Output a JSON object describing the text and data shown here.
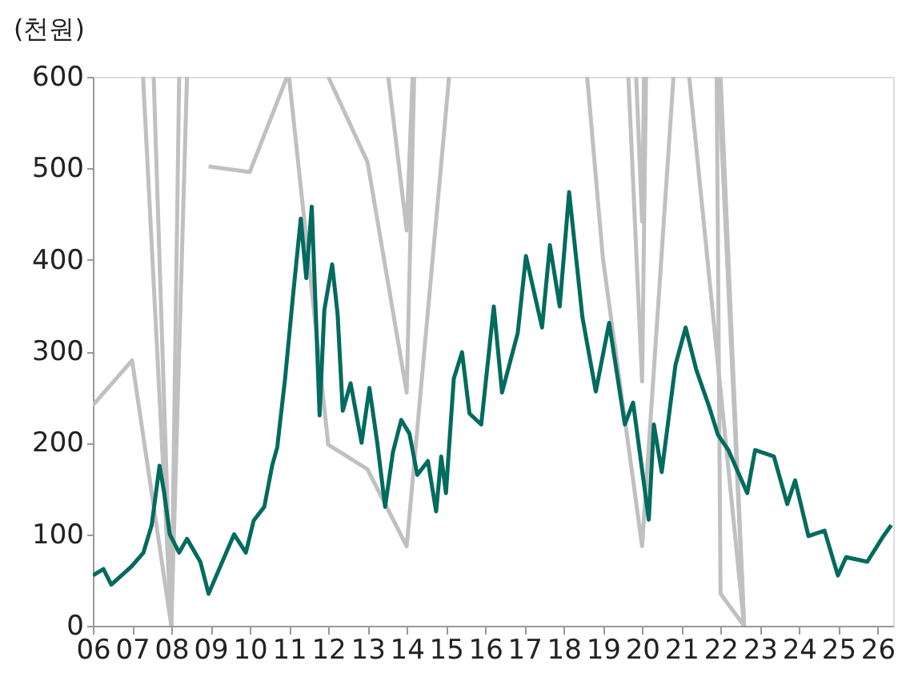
{
  "chart_data": {
    "type": "line",
    "ylabel": "(천원)",
    "xlim": [
      2006,
      2026.4
    ],
    "ylim": [
      0,
      600
    ],
    "yticks": [
      0,
      100,
      200,
      300,
      400,
      500,
      600
    ],
    "xticks": [
      {
        "value": 2006,
        "label": "06"
      },
      {
        "value": 2007,
        "label": "07"
      },
      {
        "value": 2008,
        "label": "08"
      },
      {
        "value": 2009,
        "label": "09"
      },
      {
        "value": 2010,
        "label": "10"
      },
      {
        "value": 2011,
        "label": "11"
      },
      {
        "value": 2012,
        "label": "12"
      },
      {
        "value": 2013,
        "label": "13"
      },
      {
        "value": 2014,
        "label": "14"
      },
      {
        "value": 2015,
        "label": "15"
      },
      {
        "value": 2016,
        "label": "16"
      },
      {
        "value": 2017,
        "label": "17"
      },
      {
        "value": 2018,
        "label": "18"
      },
      {
        "value": 2019,
        "label": "19"
      },
      {
        "value": 2020,
        "label": "20"
      },
      {
        "value": 2021,
        "label": "21"
      },
      {
        "value": 2022,
        "label": "22"
      },
      {
        "value": 2023,
        "label": "23"
      },
      {
        "value": 2024,
        "label": "24"
      },
      {
        "value": 2025,
        "label": "25"
      },
      {
        "value": 2026,
        "label": "26"
      }
    ],
    "grid": false,
    "legend": false,
    "marker": "none",
    "line_style": "solid",
    "series": [
      {
        "color": "#c0c0c0",
        "x": [
          2006.0,
          2007.0,
          2008.0,
          2008.2,
          null,
          2007.28,
          2008.0,
          null,
          2007.55,
          2008.0,
          2008.4,
          null,
          2008.95,
          2010.0,
          2010.95,
          null,
          2011.0,
          2012.0,
          2013.0,
          2014.0,
          2015.08,
          null,
          2012.0,
          2013.0,
          2014.0,
          2014.19,
          null,
          2013.53,
          2014.0,
          2014.15,
          null,
          2018.6,
          2019.0,
          2020.0,
          2020.8,
          null,
          2019.65,
          2020.0,
          2020.1,
          null,
          2019.85,
          2020.0,
          2020.05,
          null,
          2021.2,
          2022.6,
          null,
          2021.9,
          2022.0,
          2022.6,
          null,
          2022.0,
          2022.6,
          null,
          2021.95,
          2022.6
        ],
        "values": [
          241,
          290,
          0,
          600,
          null,
          600,
          0,
          null,
          600,
          0,
          600,
          null,
          502,
          496,
          600,
          null,
          600,
          198,
          171,
          87,
          600,
          null,
          600,
          507,
          255,
          600,
          null,
          600,
          432,
          600,
          null,
          600,
          402,
          87,
          600,
          null,
          600,
          267,
          600,
          null,
          600,
          442,
          600,
          null,
          600,
          0,
          null,
          600,
          35,
          0,
          null,
          600,
          0,
          null,
          600,
          0
        ]
      },
      {
        "color": "#006b5e",
        "x": [
          2006.0,
          2006.27,
          2006.47,
          2006.99,
          2007.29,
          2007.5,
          2007.7,
          2007.82,
          2007.96,
          2008.2,
          2008.4,
          2008.74,
          2008.95,
          2009.15,
          2009.35,
          2009.6,
          2009.9,
          2010.1,
          2010.37,
          2010.57,
          2010.7,
          2010.9,
          2011.1,
          2011.3,
          2011.44,
          2011.58,
          2011.72,
          2011.78,
          2011.9,
          2012.1,
          2012.24,
          2012.37,
          2012.57,
          2012.85,
          2013.05,
          2013.25,
          2013.45,
          2013.65,
          2013.86,
          2014.07,
          2014.27,
          2014.54,
          2014.75,
          2014.88,
          2015.0,
          2015.2,
          2015.41,
          2015.6,
          2015.9,
          2016.22,
          2016.43,
          2016.83,
          2017.04,
          2017.45,
          2017.65,
          2017.9,
          2018.14,
          2018.48,
          2018.82,
          2019.16,
          2019.56,
          2019.77,
          2020.17,
          2020.3,
          2020.5,
          2020.85,
          2021.11,
          2021.38,
          2021.72,
          2021.93,
          2022.2,
          2022.68,
          2022.88,
          2023.36,
          2023.7,
          2023.9,
          2024.24,
          2024.65,
          2024.99,
          2025.2,
          2025.74,
          2026.15,
          2026.35
        ],
        "values": [
          55,
          62,
          45,
          65,
          80,
          110,
          175,
          145,
          100,
          80,
          95,
          70,
          35,
          55,
          75,
          100,
          80,
          115,
          130,
          175,
          195,
          270,
          360,
          445,
          380,
          458,
          300,
          230,
          345,
          395,
          340,
          235,
          265,
          200,
          260,
          200,
          130,
          190,
          225,
          210,
          165,
          180,
          125,
          185,
          145,
          270,
          299,
          232,
          220,
          349,
          255,
          320,
          404,
          326,
          416,
          349,
          474,
          337,
          256,
          331,
          220,
          244,
          116,
          220,
          168,
          285,
          326,
          280,
          238,
          209,
          192,
          145,
          192,
          185,
          133,
          159,
          98,
          104,
          55,
          75,
          70,
          98,
          110
        ]
      }
    ]
  }
}
